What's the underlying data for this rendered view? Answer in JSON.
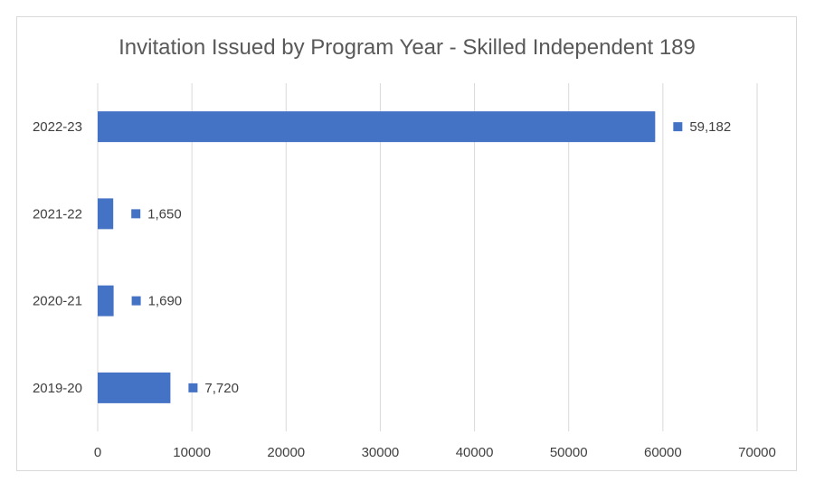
{
  "chart_data": {
    "type": "bar",
    "orientation": "horizontal",
    "title": "Invitation Issued by Program Year - Skilled Independent 189",
    "categories": [
      "2019-20",
      "2020-21",
      "2021-22",
      "2022-23"
    ],
    "values": [
      7720,
      1690,
      1650,
      59182
    ],
    "data_labels": [
      "7,720",
      "1,690",
      "1,650",
      "59,182"
    ],
    "xlim": [
      0,
      70000
    ],
    "x_ticks": [
      0,
      10000,
      20000,
      30000,
      40000,
      50000,
      60000,
      70000
    ],
    "x_tick_labels": [
      "0",
      "10000",
      "20000",
      "30000",
      "40000",
      "50000",
      "60000",
      "70000"
    ],
    "grid": "vertical",
    "legend": "none",
    "bar_color": "#4472C4",
    "grid_color": "#d9d9d9"
  }
}
